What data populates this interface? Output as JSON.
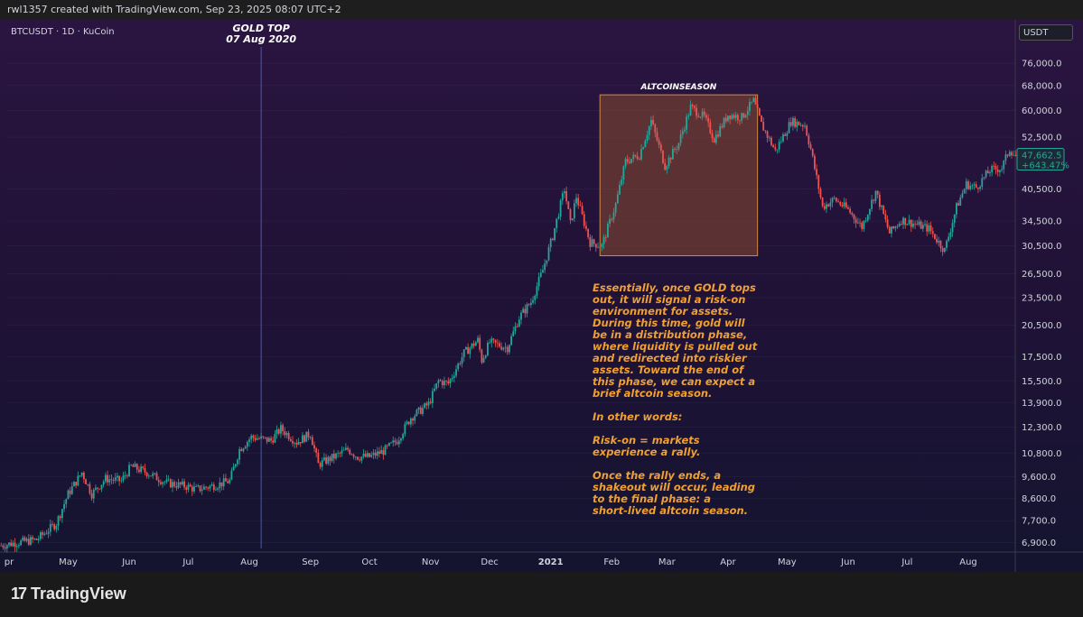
{
  "header": {
    "credit": "rwl1357 created with TradingView.com, Sep 23, 2025 08:07 UTC+2"
  },
  "symbol_label": "BTCUSDT · 1D · KuCoin",
  "currency": "USDT",
  "brand": {
    "mark": "17",
    "name": "TradingView"
  },
  "price_badge": {
    "price": "47,662.5",
    "change": "+643.47%"
  },
  "gold_marker": {
    "line1": "GOLD TOP",
    "line2": "07 Aug 2020",
    "date": "2020-08-07"
  },
  "highlight_box": {
    "label": "ALTCOINSEASON",
    "from": "2021-01-26",
    "to": "2021-04-16",
    "low": 29000,
    "high": 64900
  },
  "annotation": {
    "p1": "Essentially, once GOLD tops\nout, it will signal a risk-on\nenvironment for assets.\nDuring this time, gold will\nbe in a distribution phase,\nwhere liquidity is pulled out\nand redirected into riskier\nassets. Toward the end of\nthis phase, we can expect a\nbrief altcoin season.",
    "p2": "In other words:",
    "p3": "Risk-on = markets\nexperience a rally.",
    "p4": "Once the rally ends, a\nshakeout will occur, leading\nto the final phase: a\nshort-lived altcoin season."
  },
  "colors": {
    "up": "#26a69a",
    "down": "#ef5350",
    "box_fill": "#8a4a30",
    "box_stroke": "#d08a40",
    "annotation": "#f0a030",
    "gold_line": "#4a5ab0",
    "badge": "#26a69a"
  },
  "chart_data": {
    "type": "line",
    "title": "BTCUSDT · 1D · KuCoin",
    "scale": "log",
    "ylim": [
      6700,
      84000
    ],
    "y_ticks": [
      "76,000.0",
      "68,000.0",
      "60,000.0",
      "52,500.0",
      "40,500.0",
      "34,500.0",
      "30,500.0",
      "26,500.0",
      "23,500.0",
      "20,500.0",
      "17,500.0",
      "15,500.0",
      "13,900.0",
      "12,300.0",
      "10,800.0",
      "9,600.0",
      "8,600.0",
      "7,700.0",
      "6,900.0"
    ],
    "x_ticks": [
      {
        "label": "pr",
        "date": "2020-04-01"
      },
      {
        "label": "May",
        "date": "2020-05-01"
      },
      {
        "label": "Jun",
        "date": "2020-06-01"
      },
      {
        "label": "Jul",
        "date": "2020-07-01"
      },
      {
        "label": "Aug",
        "date": "2020-08-01"
      },
      {
        "label": "Sep",
        "date": "2020-09-01"
      },
      {
        "label": "Oct",
        "date": "2020-10-01"
      },
      {
        "label": "Nov",
        "date": "2020-11-01"
      },
      {
        "label": "Dec",
        "date": "2020-12-01"
      },
      {
        "label": "2021",
        "date": "2021-01-01"
      },
      {
        "label": "Feb",
        "date": "2021-02-01"
      },
      {
        "label": "Mar",
        "date": "2021-03-01"
      },
      {
        "label": "Apr",
        "date": "2021-04-01"
      },
      {
        "label": "May",
        "date": "2021-05-01"
      },
      {
        "label": "Jun",
        "date": "2021-06-01"
      },
      {
        "label": "Jul",
        "date": "2021-07-01"
      },
      {
        "label": "Aug",
        "date": "2021-08-01"
      }
    ],
    "series": [
      {
        "points": [
          [
            "2020-03-28",
            6800
          ],
          [
            "2020-04-05",
            6900
          ],
          [
            "2020-04-15",
            7000
          ],
          [
            "2020-04-25",
            7600
          ],
          [
            "2020-05-01",
            8800
          ],
          [
            "2020-05-08",
            9800
          ],
          [
            "2020-05-13",
            8800
          ],
          [
            "2020-05-20",
            9500
          ],
          [
            "2020-05-28",
            9400
          ],
          [
            "2020-06-02",
            10100
          ],
          [
            "2020-06-10",
            9800
          ],
          [
            "2020-06-20",
            9300
          ],
          [
            "2020-06-30",
            9150
          ],
          [
            "2020-07-05",
            9000
          ],
          [
            "2020-07-15",
            9200
          ],
          [
            "2020-07-22",
            9400
          ],
          [
            "2020-07-27",
            11000
          ],
          [
            "2020-08-02",
            11700
          ],
          [
            "2020-08-07",
            11600
          ],
          [
            "2020-08-12",
            11500
          ],
          [
            "2020-08-17",
            12200
          ],
          [
            "2020-08-25",
            11400
          ],
          [
            "2020-09-01",
            11900
          ],
          [
            "2020-09-05",
            10200
          ],
          [
            "2020-09-15",
            10700
          ],
          [
            "2020-09-20",
            11000
          ],
          [
            "2020-09-25",
            10600
          ],
          [
            "2020-10-01",
            10600
          ],
          [
            "2020-10-08",
            10900
          ],
          [
            "2020-10-15",
            11500
          ],
          [
            "2020-10-22",
            12900
          ],
          [
            "2020-10-31",
            13800
          ],
          [
            "2020-11-05",
            15500
          ],
          [
            "2020-11-10",
            15300
          ],
          [
            "2020-11-18",
            17800
          ],
          [
            "2020-11-25",
            19000
          ],
          [
            "2020-11-27",
            17200
          ],
          [
            "2020-12-01",
            18800
          ],
          [
            "2020-12-10",
            18300
          ],
          [
            "2020-12-16",
            21300
          ],
          [
            "2020-12-22",
            23000
          ],
          [
            "2020-12-28",
            27000
          ],
          [
            "2021-01-02",
            32000
          ],
          [
            "2021-01-08",
            40500
          ],
          [
            "2021-01-11",
            34000
          ],
          [
            "2021-01-14",
            39000
          ],
          [
            "2021-01-21",
            31000
          ],
          [
            "2021-01-27",
            30500
          ],
          [
            "2021-02-03",
            37500
          ],
          [
            "2021-02-08",
            46500
          ],
          [
            "2021-02-15",
            48000
          ],
          [
            "2021-02-21",
            57000
          ],
          [
            "2021-02-28",
            45500
          ],
          [
            "2021-03-07",
            51000
          ],
          [
            "2021-03-13",
            61000
          ],
          [
            "2021-03-20",
            58000
          ],
          [
            "2021-03-25",
            52000
          ],
          [
            "2021-04-01",
            58800
          ],
          [
            "2021-04-08",
            58000
          ],
          [
            "2021-04-14",
            63000
          ],
          [
            "2021-04-18",
            56000
          ],
          [
            "2021-04-25",
            49000
          ],
          [
            "2021-05-03",
            56800
          ],
          [
            "2021-05-10",
            55800
          ],
          [
            "2021-05-13",
            49500
          ],
          [
            "2021-05-19",
            37000
          ],
          [
            "2021-05-25",
            38500
          ],
          [
            "2021-06-01",
            36500
          ],
          [
            "2021-06-08",
            33500
          ],
          [
            "2021-06-15",
            40000
          ],
          [
            "2021-06-22",
            32500
          ],
          [
            "2021-06-28",
            34700
          ],
          [
            "2021-07-05",
            34000
          ],
          [
            "2021-07-12",
            33200
          ],
          [
            "2021-07-20",
            29800
          ],
          [
            "2021-07-26",
            37000
          ],
          [
            "2021-07-31",
            41500
          ],
          [
            "2021-08-05",
            40800
          ],
          [
            "2021-08-12",
            44500
          ],
          [
            "2021-08-18",
            45000
          ],
          [
            "2021-08-22",
            49500
          ],
          [
            "2021-08-25",
            47662.5
          ]
        ]
      }
    ]
  }
}
